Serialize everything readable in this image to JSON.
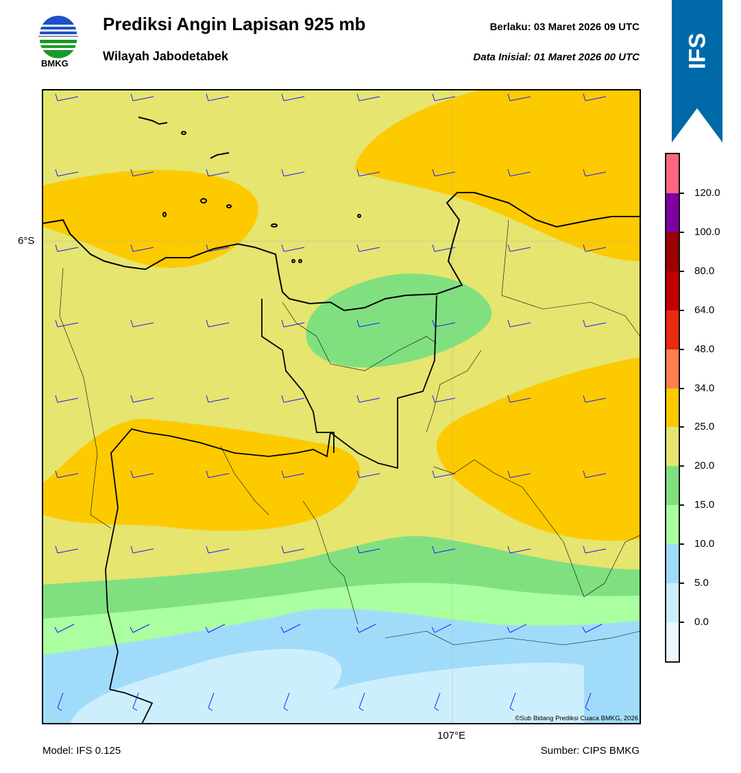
{
  "header": {
    "title": "Prediksi Angin Lapisan 925 mb",
    "subtitle": "Wilayah Jabodetabek",
    "valid": "Berlaku:  03 Maret 2026 09 UTC",
    "initial": "Data Inisial:  01 Maret 2026 00 UTC",
    "logo_text": "BMKG",
    "model_badge": "IFS",
    "badge_color": "#0069a8"
  },
  "map": {
    "lat_label": "6°S",
    "lon_label": "107°E",
    "copyright": "©Sub Bidang Prediksi Cuaca BMKG, 2026",
    "barb_color": "#1a1aff"
  },
  "colorbar": {
    "ticks": [
      "120.0",
      "100.0",
      "80.0",
      "64.0",
      "48.0",
      "34.0",
      "25.0",
      "20.0",
      "15.0",
      "10.0",
      "5.0",
      "0.0"
    ],
    "colors": [
      "#ff6680",
      "#7d00a0",
      "#9a0000",
      "#c00000",
      "#e82a10",
      "#ff7f50",
      "#fdca00",
      "#e5e570",
      "#80e080",
      "#aaffa0",
      "#a0dcfa",
      "#cdeffd",
      "#eef6ff"
    ]
  },
  "footer": {
    "model": "Model: IFS 0.125",
    "source": "Sumber: CIPS BMKG"
  }
}
